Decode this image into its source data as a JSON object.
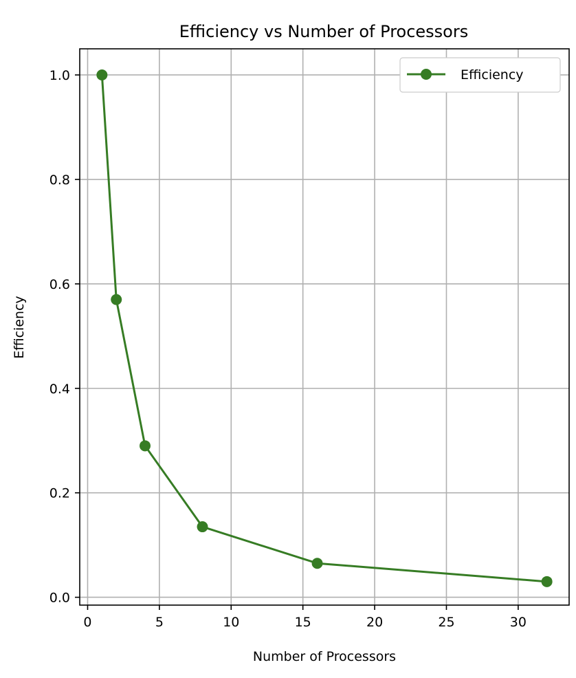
{
  "chart_data": {
    "type": "line",
    "title": "Efficiency vs Number of Processors",
    "xlabel": "Number of Processors",
    "ylabel": "Efficiency",
    "xlim": [
      -0.55,
      33.55
    ],
    "ylim": [
      -0.015,
      1.05
    ],
    "xticks": [
      0,
      5,
      10,
      15,
      20,
      25,
      30
    ],
    "xtick_labels": [
      "0",
      "5",
      "10",
      "15",
      "20",
      "25",
      "30"
    ],
    "yticks": [
      0.0,
      0.2,
      0.4,
      0.6,
      0.8,
      1.0
    ],
    "ytick_labels": [
      "0.0",
      "0.2",
      "0.4",
      "0.6",
      "0.8",
      "1.0"
    ],
    "grid": true,
    "legend_position": "top-right",
    "series": [
      {
        "name": "Efficiency",
        "color": "#367c24",
        "marker": "circle",
        "x": [
          1,
          2,
          4,
          8,
          16,
          32
        ],
        "y": [
          1.0,
          0.57,
          0.29,
          0.135,
          0.065,
          0.03
        ]
      }
    ]
  }
}
